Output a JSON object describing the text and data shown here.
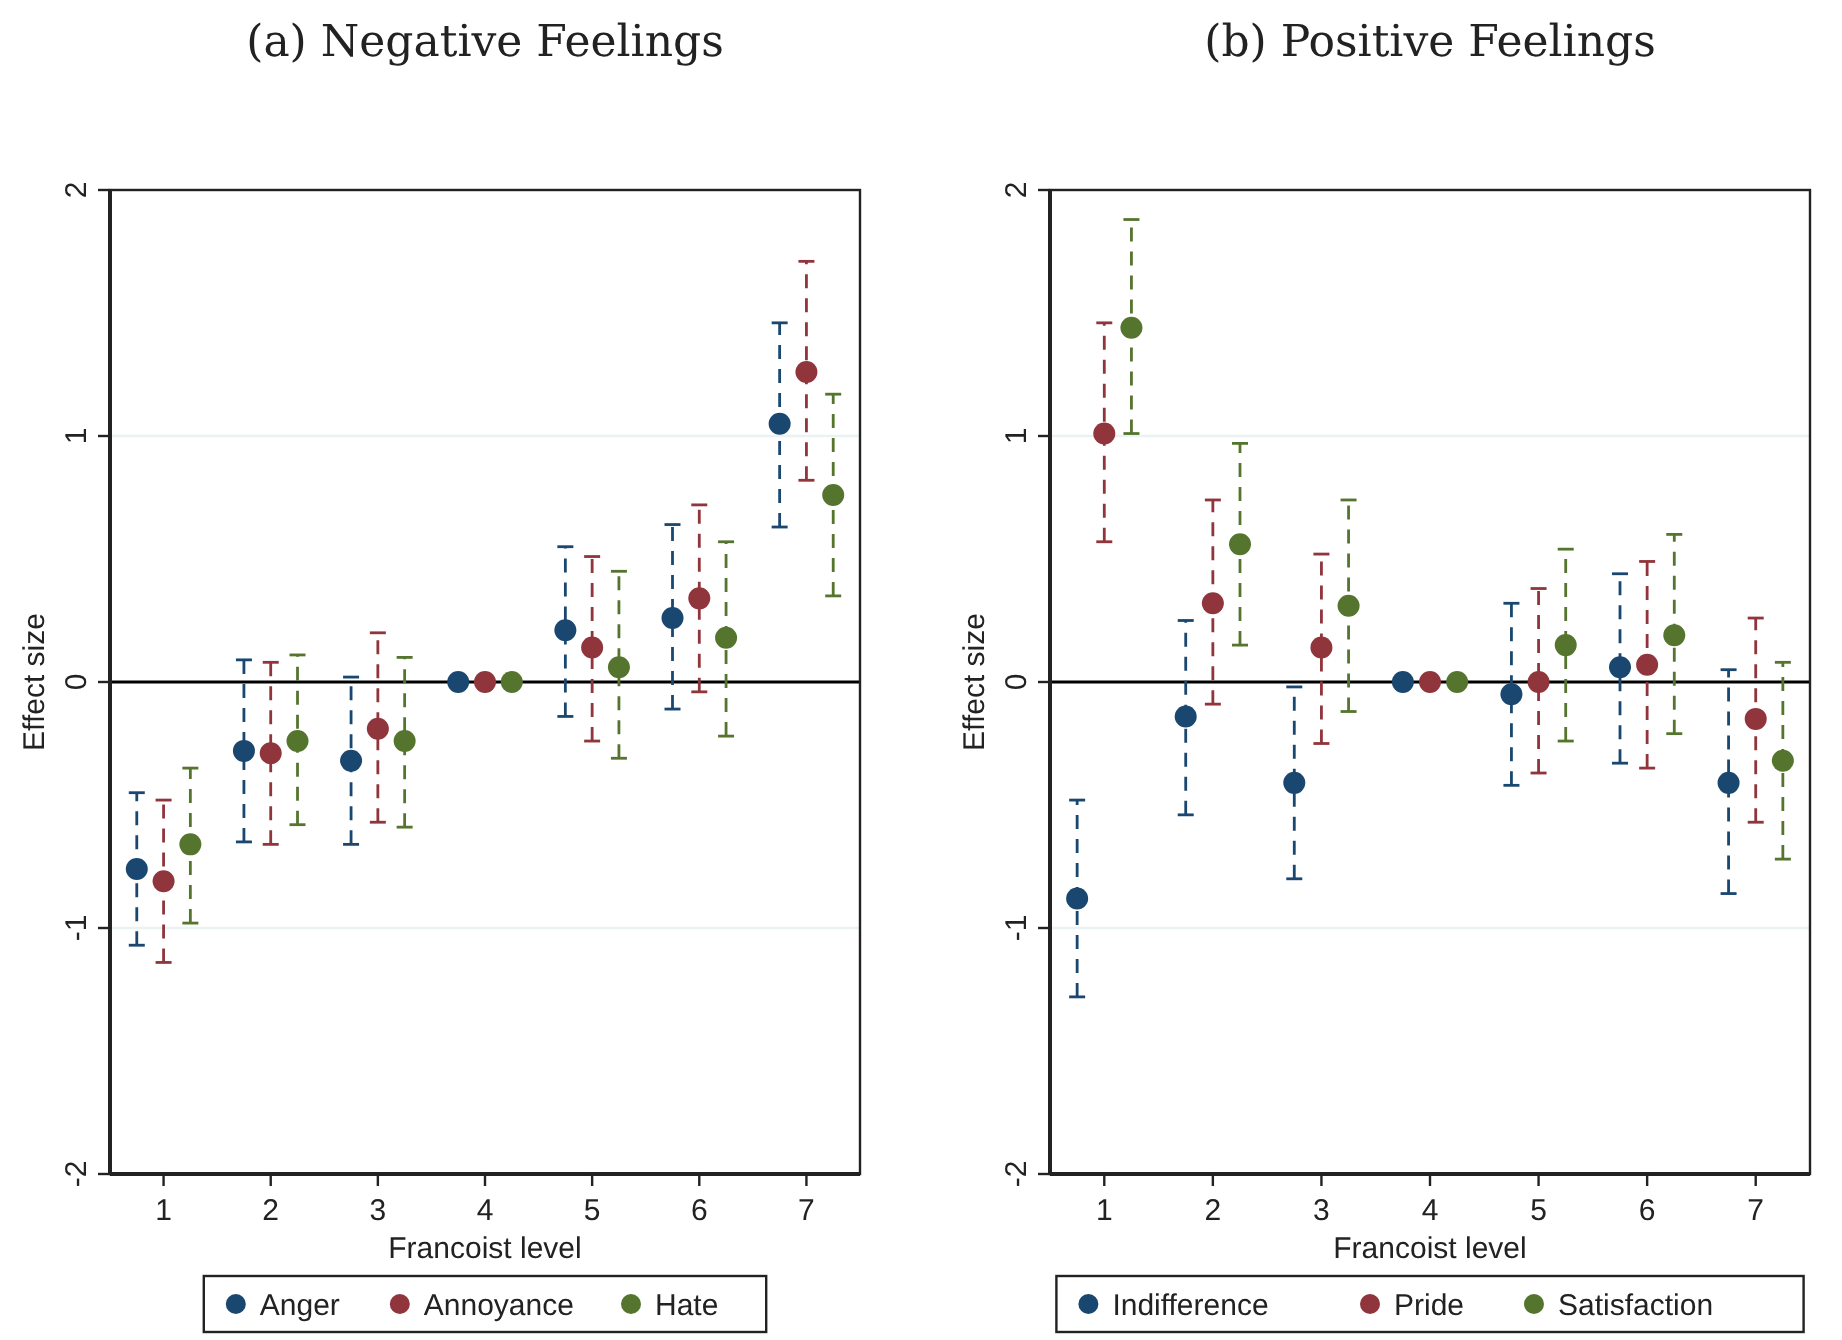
{
  "chart_data": [
    {
      "type": "scatter",
      "title": "(a) Negative Feelings",
      "xlabel": "Francoist level",
      "ylabel": "Effect size",
      "xlim": [
        0.5,
        7.5
      ],
      "xticks": [
        1,
        2,
        3,
        4,
        5,
        6,
        7
      ],
      "ylim": [
        -2,
        2
      ],
      "yticks": [
        -2,
        -1,
        0,
        1,
        2
      ],
      "grid": "y",
      "legend": "bottom",
      "marker": "circle",
      "ref_lines": [
        {
          "axis": "y",
          "value": 0,
          "color": "#000000"
        }
      ],
      "series": [
        {
          "name": "Anger",
          "color": "#1a476f",
          "x": [
            0.75,
            1.75,
            2.75,
            3.75,
            4.75,
            5.75,
            6.75
          ],
          "values": [
            -0.76,
            -0.28,
            -0.32,
            0,
            0.21,
            0.26,
            1.05
          ],
          "errors": [
            [
              -1.07,
              -0.45
            ],
            [
              -0.65,
              0.09
            ],
            [
              -0.66,
              0.02
            ],
            null,
            [
              -0.14,
              0.55
            ],
            [
              -0.11,
              0.64
            ],
            [
              0.63,
              1.46
            ]
          ]
        },
        {
          "name": "Annoyance",
          "color": "#90353b",
          "x": [
            1,
            2,
            3,
            4,
            5,
            6,
            7
          ],
          "values": [
            -0.81,
            -0.29,
            -0.19,
            0,
            0.14,
            0.34,
            1.26
          ],
          "errors": [
            [
              -1.14,
              -0.48
            ],
            [
              -0.66,
              0.08
            ],
            [
              -0.57,
              0.2
            ],
            null,
            [
              -0.24,
              0.51
            ],
            [
              -0.04,
              0.72
            ],
            [
              0.82,
              1.71
            ]
          ]
        },
        {
          "name": "Hate",
          "color": "#55752f",
          "x": [
            1.25,
            2.25,
            3.25,
            4.25,
            5.25,
            6.25,
            7.25
          ],
          "values": [
            -0.66,
            -0.24,
            -0.24,
            0,
            0.06,
            0.18,
            0.76
          ],
          "errors": [
            [
              -0.98,
              -0.35
            ],
            [
              -0.58,
              0.11
            ],
            [
              -0.59,
              0.1
            ],
            null,
            [
              -0.31,
              0.45
            ],
            [
              -0.22,
              0.57
            ],
            [
              0.35,
              1.17
            ]
          ]
        }
      ]
    },
    {
      "type": "scatter",
      "title": "(b) Positive Feelings",
      "xlabel": "Francoist level",
      "ylabel": "Effect size",
      "xlim": [
        0.5,
        7.5
      ],
      "xticks": [
        1,
        2,
        3,
        4,
        5,
        6,
        7
      ],
      "ylim": [
        -2,
        2
      ],
      "yticks": [
        -2,
        -1,
        0,
        1,
        2
      ],
      "grid": "y",
      "legend": "bottom",
      "marker": "circle",
      "ref_lines": [
        {
          "axis": "y",
          "value": 0,
          "color": "#000000"
        }
      ],
      "series": [
        {
          "name": "Indifference",
          "color": "#1a476f",
          "x": [
            0.75,
            1.75,
            2.75,
            3.75,
            4.75,
            5.75,
            6.75
          ],
          "values": [
            -0.88,
            -0.14,
            -0.41,
            0,
            -0.05,
            0.06,
            -0.41
          ],
          "errors": [
            [
              -1.28,
              -0.48
            ],
            [
              -0.54,
              0.25
            ],
            [
              -0.8,
              -0.02
            ],
            null,
            [
              -0.42,
              0.32
            ],
            [
              -0.33,
              0.44
            ],
            [
              -0.86,
              0.05
            ]
          ]
        },
        {
          "name": "Pride",
          "color": "#90353b",
          "x": [
            1,
            2,
            3,
            4,
            5,
            6,
            7
          ],
          "values": [
            1.01,
            0.32,
            0.14,
            0,
            0,
            0.07,
            -0.15
          ],
          "errors": [
            [
              0.57,
              1.46
            ],
            [
              -0.09,
              0.74
            ],
            [
              -0.25,
              0.52
            ],
            null,
            [
              -0.37,
              0.38
            ],
            [
              -0.35,
              0.49
            ],
            [
              -0.57,
              0.26
            ]
          ]
        },
        {
          "name": "Satisfaction",
          "color": "#55752f",
          "x": [
            1.25,
            2.25,
            3.25,
            4.25,
            5.25,
            6.25,
            7.25
          ],
          "values": [
            1.44,
            0.56,
            0.31,
            0,
            0.15,
            0.19,
            -0.32
          ],
          "errors": [
            [
              1.01,
              1.88
            ],
            [
              0.15,
              0.97
            ],
            [
              -0.12,
              0.74
            ],
            null,
            [
              -0.24,
              0.54
            ],
            [
              -0.21,
              0.6
            ],
            [
              -0.72,
              0.08
            ]
          ]
        }
      ]
    }
  ]
}
